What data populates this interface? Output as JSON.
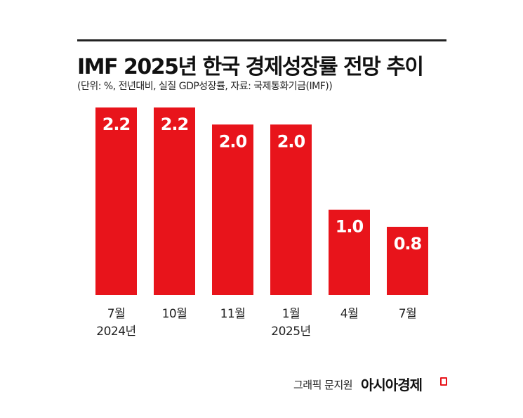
{
  "chart_data": {
    "type": "bar",
    "title": "IMF 2025년 한국 경제성장률 전망 추이",
    "subtitle": "(단위: %, 전년대비, 실질 GDP성장률, 자료: 국제통화기금(IMF))",
    "categories": [
      "7월",
      "10월",
      "11월",
      "1월",
      "4월",
      "7월"
    ],
    "category_years": [
      "2024년",
      "",
      "",
      "2025년",
      "",
      ""
    ],
    "values": [
      2.2,
      2.2,
      2.0,
      2.0,
      1.0,
      0.8
    ],
    "value_labels": [
      "2.2",
      "2.2",
      "2.0",
      "2.0",
      "1.0",
      "0.8"
    ],
    "ylim": [
      0,
      2.2
    ],
    "grid": false,
    "bar_color": "#e8141b",
    "label_color": "#ffffff"
  },
  "footer": {
    "credit": "그래픽 문지원",
    "brand": "아시아경제"
  }
}
